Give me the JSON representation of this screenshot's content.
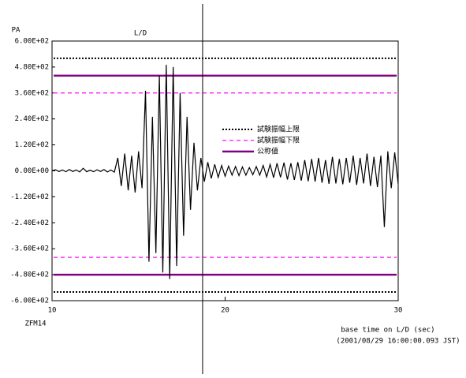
{
  "chart_data": {
    "type": "line",
    "title": "L/D",
    "y_label": "PA",
    "station": "ZFM14",
    "x_label": "base time on L/D (sec)",
    "x_sublabel": "(2001/08/29 16:00:00.093 JST)",
    "xlim": [
      10,
      30
    ],
    "xticks": [
      10,
      20,
      30
    ],
    "ylim": [
      -600,
      600
    ],
    "yticks": [
      {
        "value": 600,
        "label": "6.00E+02"
      },
      {
        "value": 480,
        "label": "4.80E+02"
      },
      {
        "value": 360,
        "label": "3.60E+02"
      },
      {
        "value": 240,
        "label": "2.40E+02"
      },
      {
        "value": 120,
        "label": "1.20E+02"
      },
      {
        "value": 0,
        "label": "0.00E+00"
      },
      {
        "value": -120,
        "label": "-1.20E+02"
      },
      {
        "value": -240,
        "label": "-2.40E+02"
      },
      {
        "value": -360,
        "label": "-3.60E+02"
      },
      {
        "value": -480,
        "label": "-4.80E+02"
      },
      {
        "value": -600,
        "label": "-6.00E+02"
      }
    ],
    "cursor_x": 18.7,
    "reference_lines": [
      {
        "name": "試験振幅上限",
        "color": "#000000",
        "style": "dotted",
        "values": [
          520,
          -560
        ]
      },
      {
        "name": "試験振幅下限",
        "color": "#ff33ff",
        "style": "dashed",
        "values": [
          360,
          -400
        ]
      },
      {
        "name": "公称値",
        "color": "#800080",
        "style": "solid",
        "values": [
          440,
          -480
        ]
      }
    ],
    "series": [
      {
        "color": "#000000",
        "x": [
          10.0,
          10.2,
          10.4,
          10.6,
          10.8,
          11.0,
          11.2,
          11.4,
          11.6,
          11.8,
          12.0,
          12.2,
          12.4,
          12.6,
          12.8,
          13.0,
          13.2,
          13.4,
          13.6,
          13.8,
          14.0,
          14.2,
          14.4,
          14.6,
          14.8,
          15.0,
          15.2,
          15.4,
          15.6,
          15.8,
          16.0,
          16.2,
          16.4,
          16.6,
          16.8,
          17.0,
          17.2,
          17.4,
          17.6,
          17.8,
          18.0,
          18.2,
          18.4,
          18.6,
          18.8,
          19.0,
          19.2,
          19.4,
          19.6,
          19.8,
          20.0,
          20.2,
          20.4,
          20.6,
          20.8,
          21.0,
          21.2,
          21.4,
          21.6,
          21.8,
          22.0,
          22.2,
          22.4,
          22.6,
          22.8,
          23.0,
          23.2,
          23.4,
          23.6,
          23.8,
          24.0,
          24.2,
          24.4,
          24.6,
          24.8,
          25.0,
          25.2,
          25.4,
          25.6,
          25.8,
          26.0,
          26.2,
          26.4,
          26.6,
          26.8,
          27.0,
          27.2,
          27.4,
          27.6,
          27.8,
          28.0,
          28.2,
          28.4,
          28.6,
          28.8,
          29.0,
          29.2,
          29.4,
          29.6,
          29.8,
          30.0
        ],
        "values": [
          0,
          5,
          -3,
          4,
          -4,
          6,
          -3,
          4,
          -5,
          12,
          -4,
          3,
          -4,
          5,
          -3,
          6,
          -5,
          4,
          -6,
          60,
          -70,
          80,
          -90,
          70,
          -100,
          90,
          -80,
          370,
          -420,
          250,
          -380,
          440,
          -470,
          490,
          -500,
          480,
          -440,
          360,
          -300,
          250,
          -180,
          130,
          -90,
          60,
          -50,
          40,
          -35,
          30,
          -30,
          25,
          -25,
          22,
          -20,
          20,
          -22,
          18,
          -20,
          15,
          -18,
          20,
          -20,
          25,
          -28,
          30,
          -32,
          35,
          -30,
          38,
          -40,
          35,
          -42,
          40,
          -45,
          50,
          -48,
          55,
          -50,
          60,
          -55,
          50,
          -60,
          65,
          -58,
          55,
          -62,
          60,
          -55,
          70,
          -65,
          60,
          -58,
          80,
          -70,
          65,
          -75,
          70,
          -260,
          90,
          -80,
          85,
          -60
        ]
      }
    ]
  }
}
